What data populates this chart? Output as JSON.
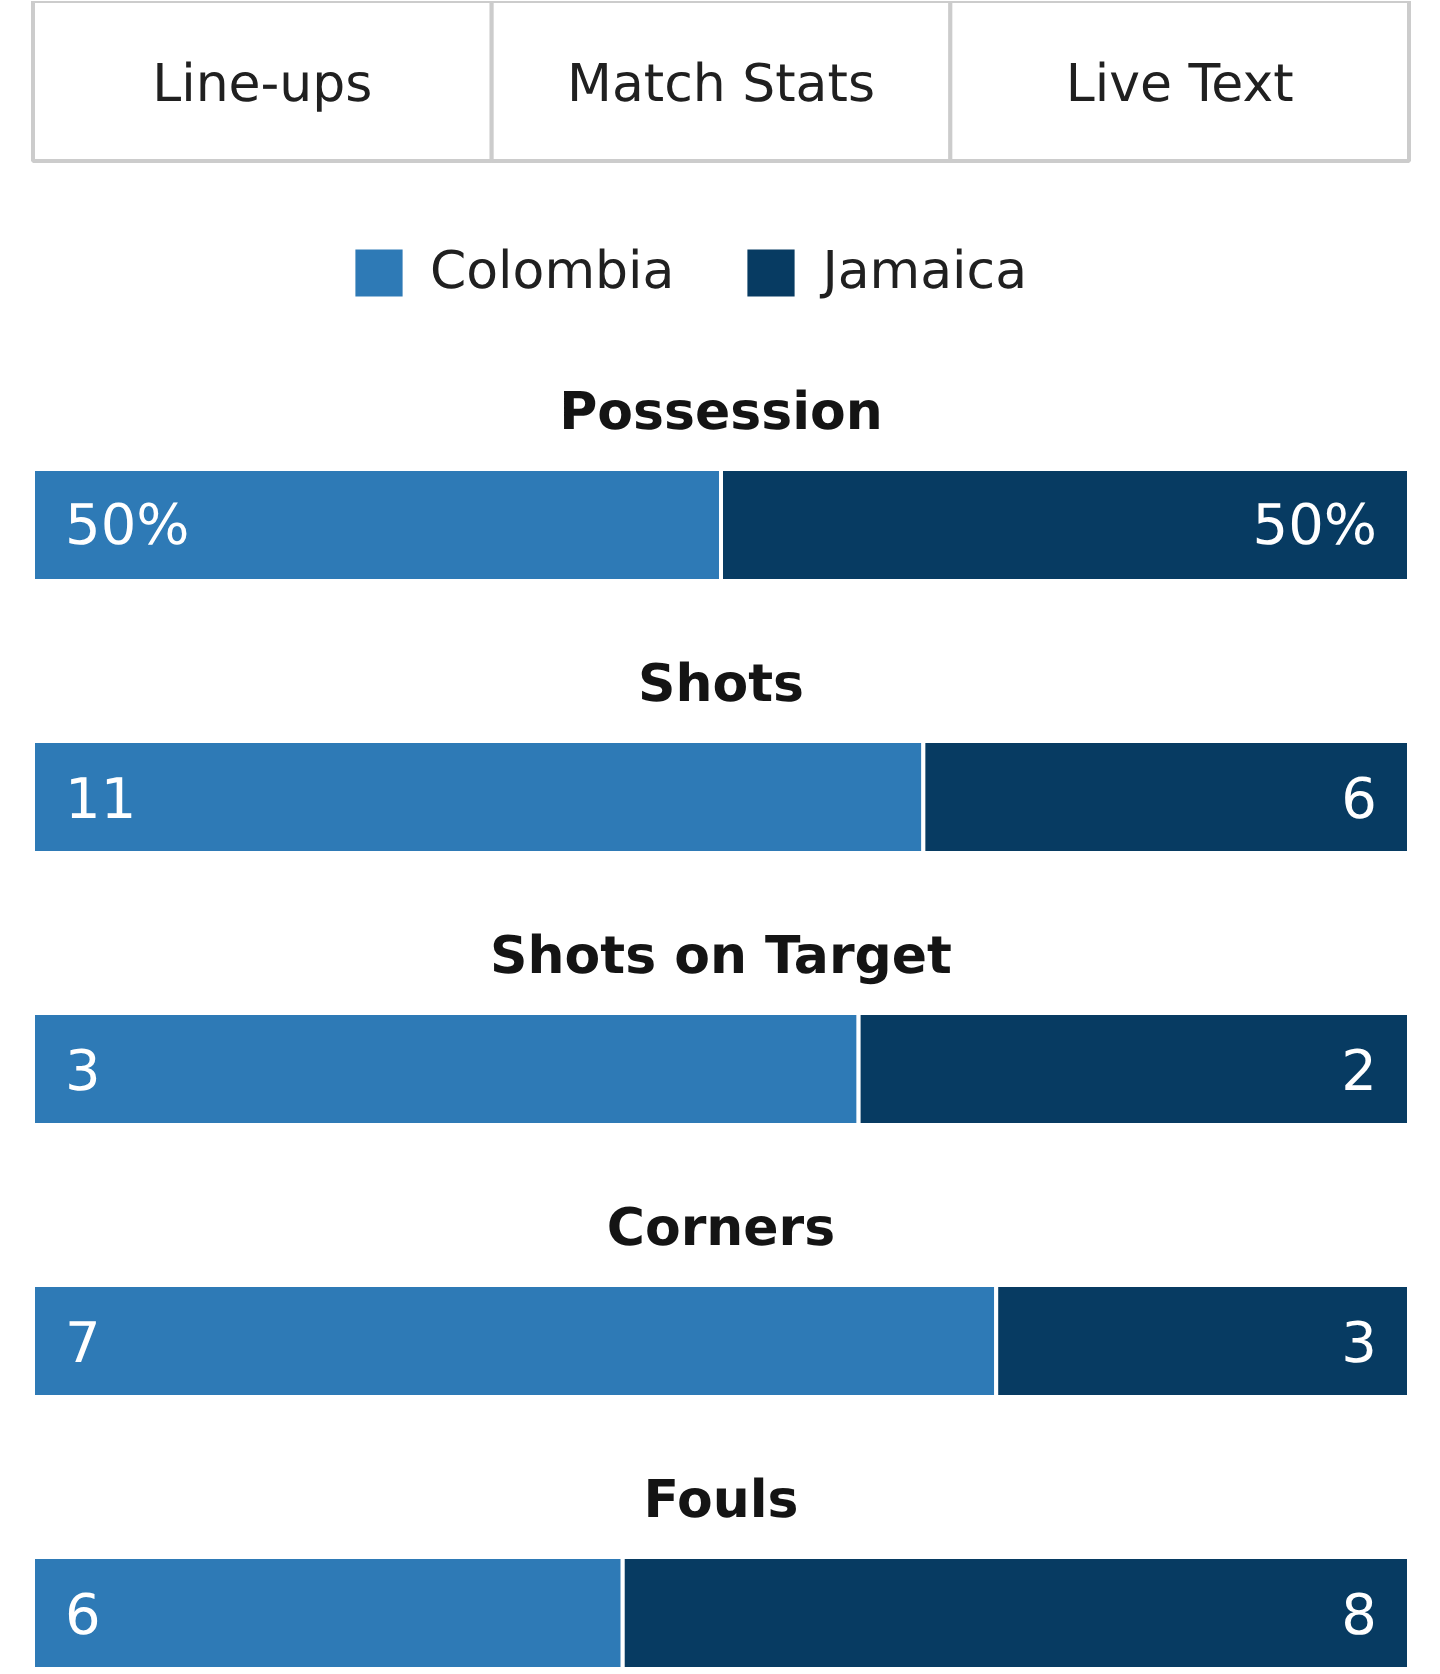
{
  "chart_data": [
    {
      "type": "bar",
      "orientation": "horizontal",
      "stacked": true,
      "legend": "top",
      "title": "Possession",
      "annotations": [
        "Line-ups",
        "Match Stats",
        "Live Text"
      ],
      "xlim": [
        0,
        100
      ],
      "series": [
        {
          "name": "Colombia",
          "color": "#2e7ab6",
          "values": [
            50
          ],
          "value_labels": [
            "50%"
          ]
        },
        {
          "name": "Jamaica",
          "color": "#073b62",
          "values": [
            50
          ],
          "value_labels": [
            "50%"
          ]
        }
      ]
    },
    {
      "type": "bar",
      "orientation": "horizontal",
      "stacked": true,
      "title": "Shots",
      "xlim": [
        0,
        17
      ],
      "data_labels": true,
      "series": [
        {
          "color": "#2e7ab6",
          "values": [
            11
          ]
        },
        {
          "color": "#073b62",
          "values": [
            6
          ]
        }
      ]
    },
    {
      "type": "bar",
      "orientation": "horizontal",
      "stacked": true,
      "title": "Shots on Target",
      "xlim": [
        0,
        5
      ],
      "data_labels": true,
      "series": [
        {
          "color": "#2e7ab6",
          "values": [
            3
          ]
        },
        {
          "color": "#073b62",
          "values": [
            2
          ]
        }
      ]
    },
    {
      "type": "bar",
      "orientation": "horizontal",
      "stacked": true,
      "title": "Corners",
      "xlim": [
        0,
        10
      ],
      "data_labels": true,
      "series": [
        {
          "color": "#2e7ab6",
          "values": [
            7
          ]
        },
        {
          "color": "#073b62",
          "values": [
            3
          ]
        }
      ]
    },
    {
      "type": "bar",
      "orientation": "horizontal",
      "stacked": true,
      "title": "Fouls",
      "xlim": [
        0,
        14
      ],
      "data_labels": true,
      "series": [
        {
          "color": "#2e7ab6",
          "values": [
            6
          ]
        },
        {
          "color": "#073b62",
          "values": [
            8
          ]
        }
      ]
    }
  ]
}
